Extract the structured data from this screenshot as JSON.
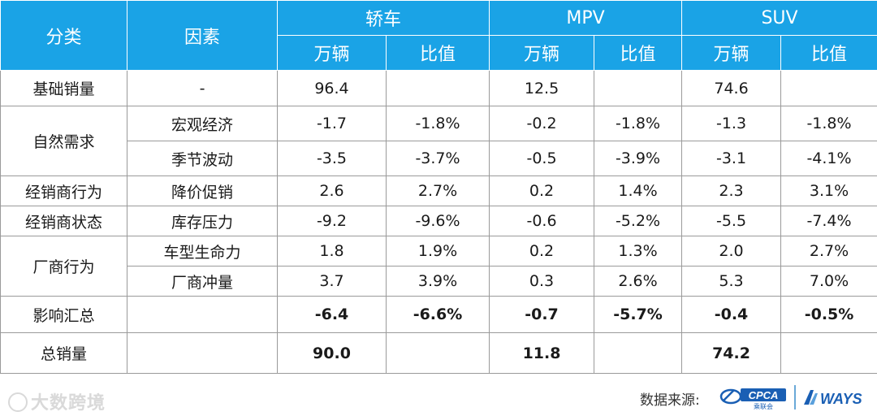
{
  "header": {
    "col_category": "分类",
    "col_factor": "因素",
    "groups": [
      "轿车",
      "MPV",
      "SUV"
    ],
    "sub_volume": "万辆",
    "sub_ratio": "比值"
  },
  "rows": {
    "base": {
      "category": "基础销量",
      "factor": "-",
      "values": [
        "96.4",
        "",
        "12.5",
        "",
        "74.6",
        ""
      ]
    },
    "natural_category": "自然需求",
    "macro": {
      "factor": "宏观经济",
      "values": [
        "-1.7",
        "-1.8%",
        "-0.2",
        "-1.8%",
        "-1.3",
        "-1.8%"
      ]
    },
    "season": {
      "factor": "季节波动",
      "values": [
        "-3.5",
        "-3.7%",
        "-0.5",
        "-3.9%",
        "-3.1",
        "-4.1%"
      ]
    },
    "dealer_behavior": {
      "category": "经销商行为",
      "factor": "降价促销",
      "values": [
        "2.6",
        "2.7%",
        "0.2",
        "1.4%",
        "2.3",
        "3.1%"
      ]
    },
    "dealer_status": {
      "category": "经销商状态",
      "factor": "库存压力",
      "values": [
        "-9.2",
        "-9.6%",
        "-0.6",
        "-5.2%",
        "-5.5",
        "-7.4%"
      ]
    },
    "maker_category": "厂商行为",
    "lifecycle": {
      "factor": "车型生命力",
      "values": [
        "1.8",
        "1.9%",
        "0.2",
        "1.3%",
        "2.0",
        "2.7%"
      ]
    },
    "push": {
      "factor": "厂商冲量",
      "values": [
        "3.7",
        "3.9%",
        "0.3",
        "2.6%",
        "5.3",
        "7.0%"
      ]
    },
    "impact": {
      "category": "影响汇总",
      "factor": "",
      "values": [
        "-6.4",
        "-6.6%",
        "-0.7",
        "-5.7%",
        "-0.4",
        "-0.5%"
      ]
    },
    "total": {
      "category": "总销量",
      "factor": "",
      "values": [
        "90.0",
        "",
        "11.8",
        "",
        "74.2",
        ""
      ]
    }
  },
  "footer": {
    "watermark": "大数跨境",
    "source_label": "数据来源:",
    "logo_cpca": "CPCA",
    "logo_cpca_sub": "乘联会",
    "logo_ways": "WAYS"
  },
  "colors": {
    "header_bg": "#1aa3e6",
    "negative": "#e02020",
    "border": "#9a9a9a"
  }
}
